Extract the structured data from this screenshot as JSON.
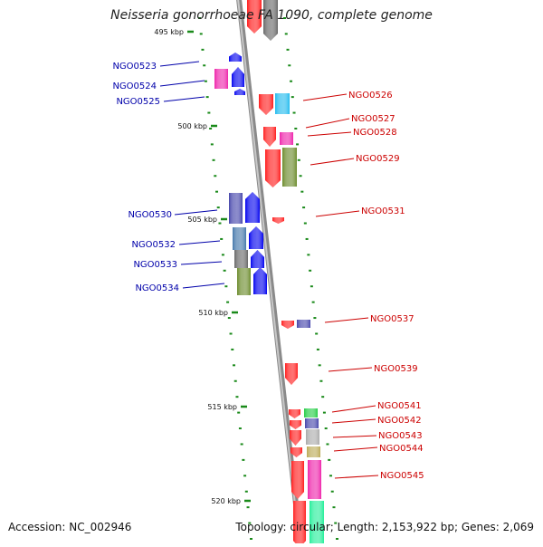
{
  "title": "Neisseria gonorrhoeae FA 1090, complete genome",
  "footer": {
    "accession": "Accession: NC_002946",
    "summary": "Topology: circular; Length: 2,153,922 bp; Genes: 2,069"
  },
  "scale_labels": [
    "495 kbp",
    "500 kbp",
    "505 kbp",
    "510 kbp",
    "515 kbp",
    "520 kbp"
  ],
  "genes_left": [
    {
      "name": "NGO0523"
    },
    {
      "name": "NGO0524"
    },
    {
      "name": "NGO0525"
    },
    {
      "name": "NGO0530"
    },
    {
      "name": "NGO0532"
    },
    {
      "name": "NGO0533"
    },
    {
      "name": "NGO0534"
    }
  ],
  "genes_right": [
    {
      "name": "NGO0526"
    },
    {
      "name": "NGO0527"
    },
    {
      "name": "NGO0528"
    },
    {
      "name": "NGO0529"
    },
    {
      "name": "NGO0531"
    },
    {
      "name": "NGO0537"
    },
    {
      "name": "NGO0539"
    },
    {
      "name": "NGO0541"
    },
    {
      "name": "NGO0542"
    },
    {
      "name": "NGO0543"
    },
    {
      "name": "NGO0544"
    },
    {
      "name": "NGO0545"
    }
  ],
  "colors": {
    "backbone": "#8a8a8a",
    "tick": "#1a8a1a",
    "label_left": "#0000aa",
    "label_right": "#cc0000"
  }
}
